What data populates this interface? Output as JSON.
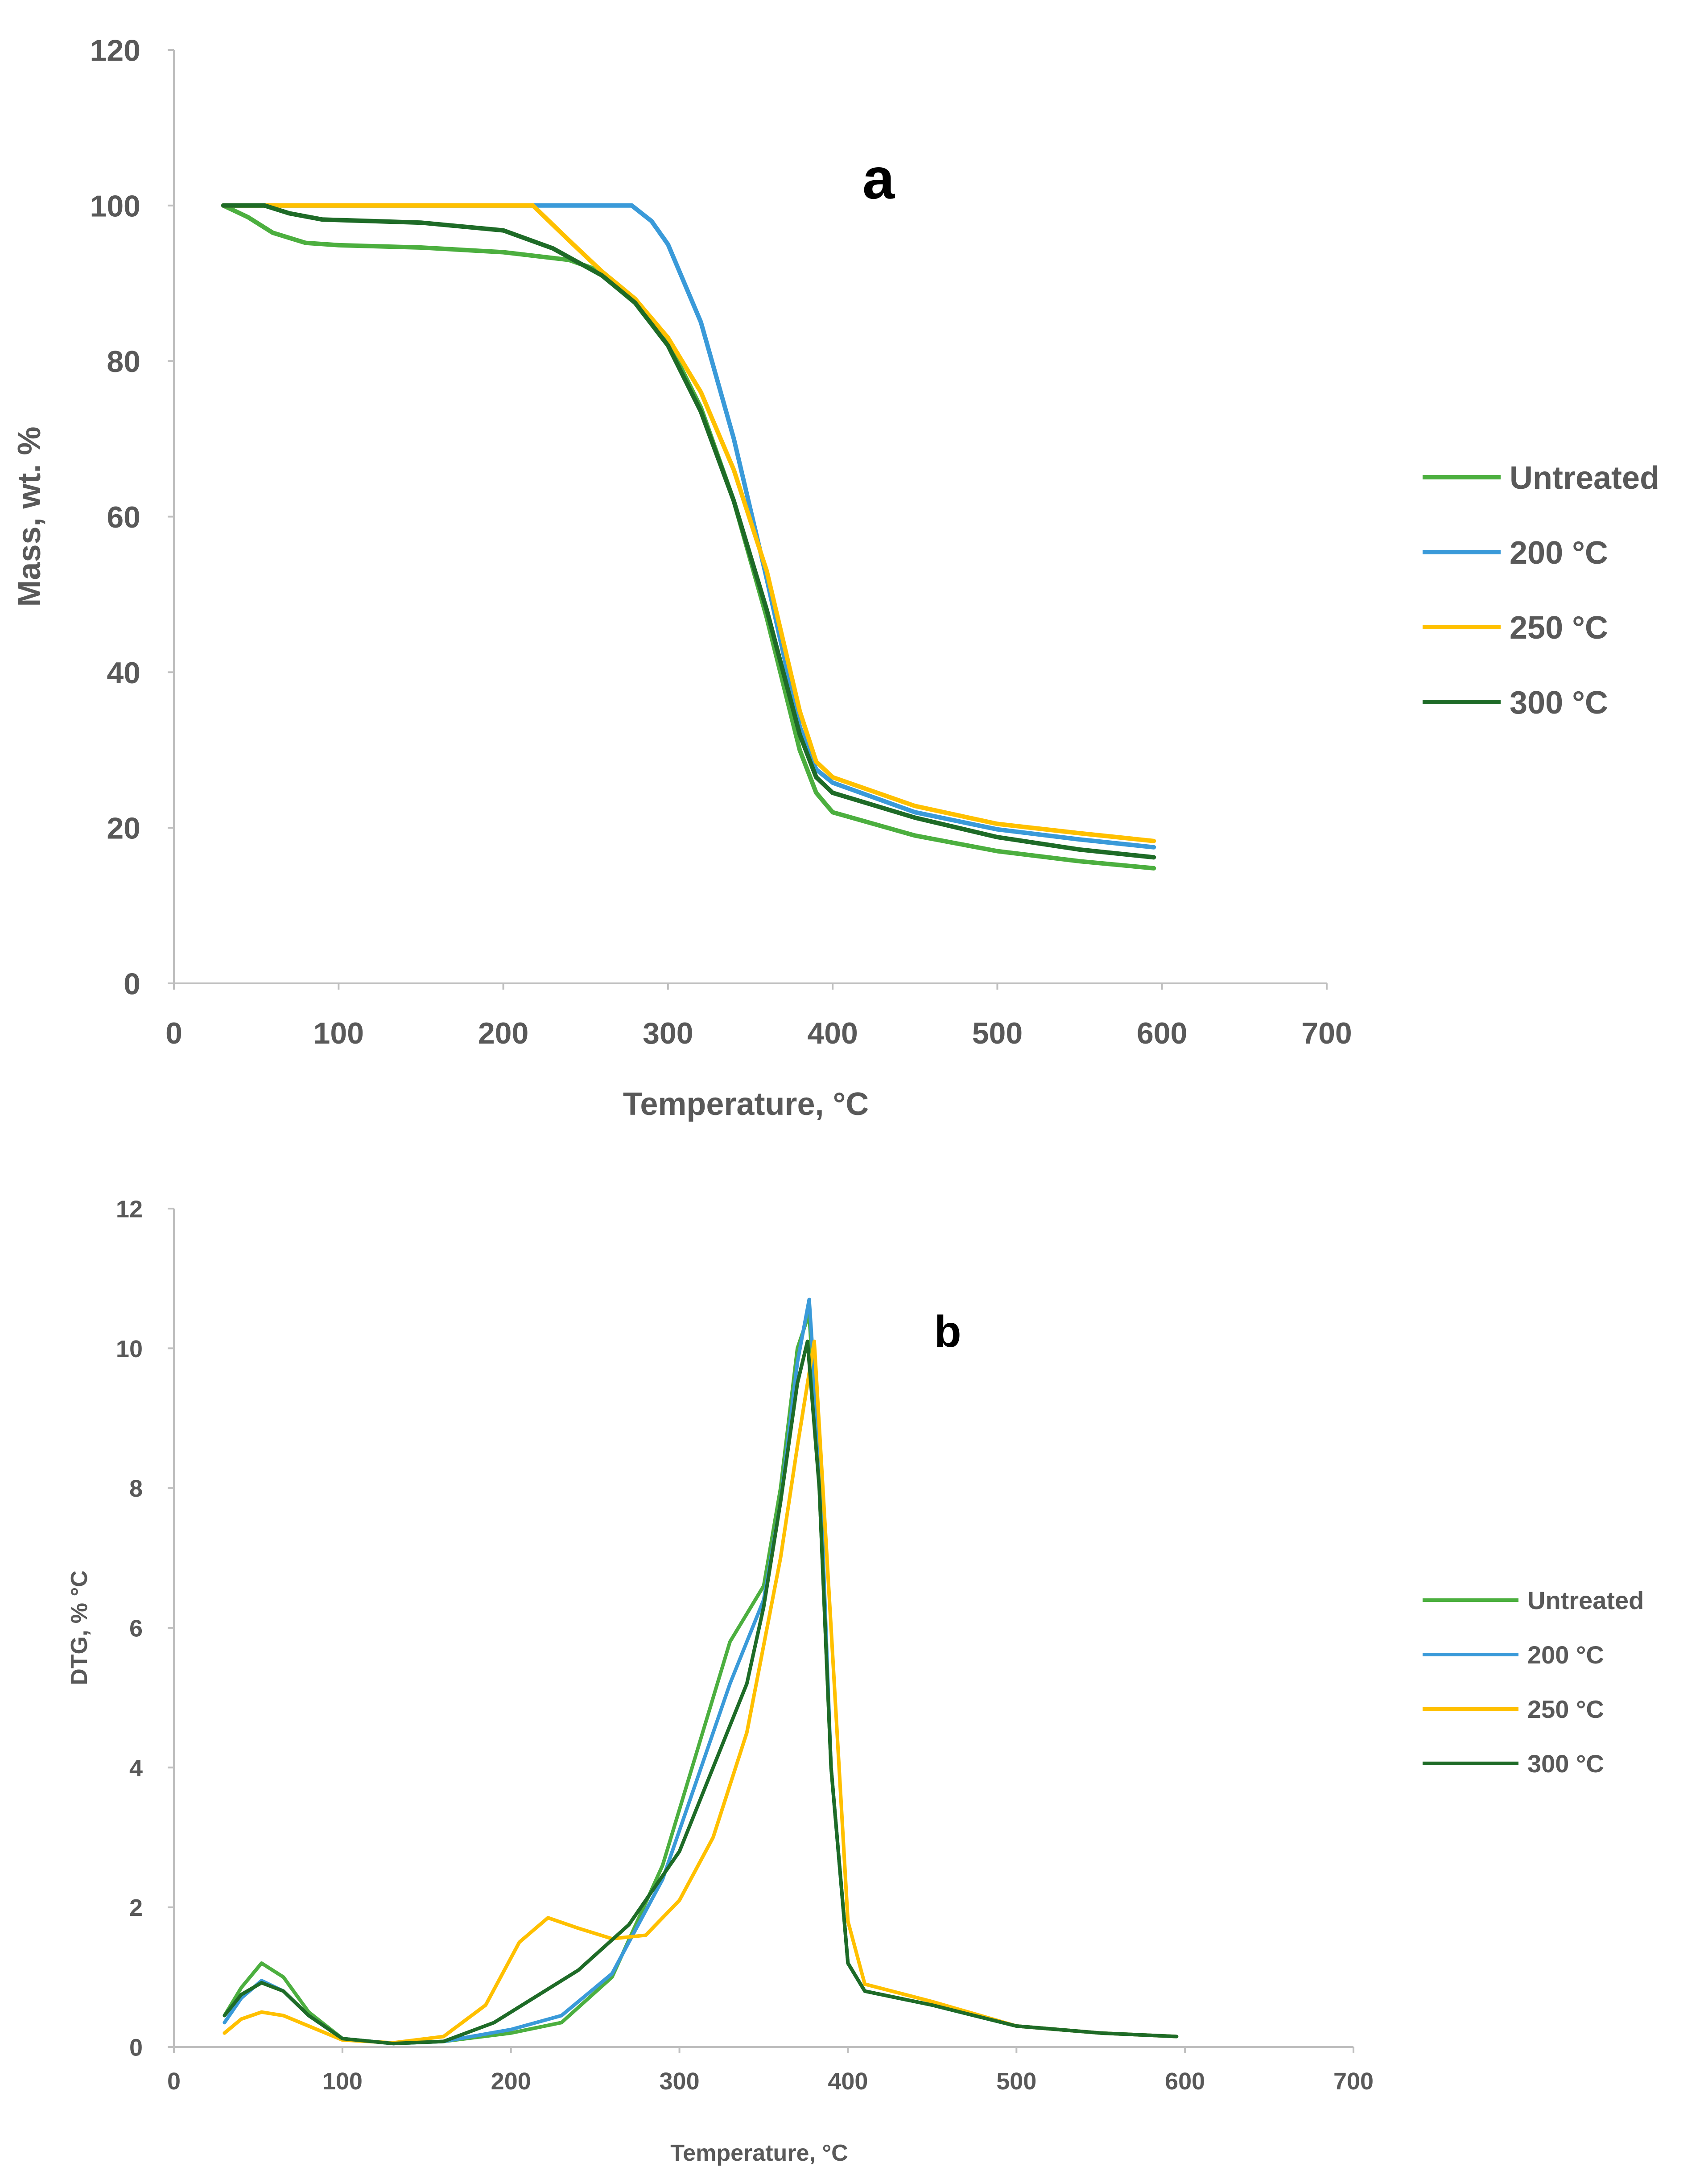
{
  "colors": {
    "untreated": "#4caf3f",
    "t200": "#3a9ad9",
    "t250": "#ffc000",
    "t300": "#1e6b27"
  },
  "chart_data": [
    {
      "type": "line",
      "panel_label": "a",
      "xlabel": "Temperature, °C",
      "ylabel": "Mass, wt. %",
      "xlim": [
        0,
        700
      ],
      "ylim": [
        0,
        120
      ],
      "xticks": [
        "0",
        "100",
        "200",
        "300",
        "400",
        "500",
        "600",
        "700"
      ],
      "yticks": [
        "0",
        "20",
        "40",
        "60",
        "80",
        "100",
        "120"
      ],
      "legend_position": "right",
      "series": [
        {
          "name": "Untreated",
          "color_key": "untreated",
          "x": [
            30,
            45,
            60,
            80,
            100,
            150,
            200,
            240,
            260,
            280,
            300,
            320,
            340,
            360,
            380,
            390,
            400,
            450,
            500,
            550,
            595
          ],
          "y": [
            100,
            98.5,
            96.5,
            95.2,
            94.9,
            94.6,
            94.0,
            93.0,
            91.5,
            88.0,
            82.5,
            74.0,
            62.0,
            47.0,
            30.0,
            24.5,
            22.0,
            19.0,
            17.0,
            15.7,
            14.8
          ]
        },
        {
          "name": "200 °C",
          "color_key": "t200",
          "x": [
            30,
            100,
            200,
            278,
            290,
            300,
            320,
            340,
            360,
            380,
            390,
            400,
            450,
            500,
            550,
            595
          ],
          "y": [
            100,
            100,
            100,
            100,
            98.0,
            95.0,
            85.0,
            70.0,
            52.0,
            33.0,
            27.5,
            25.8,
            22.0,
            19.8,
            18.5,
            17.5
          ]
        },
        {
          "name": "250 °C",
          "color_key": "t250",
          "x": [
            30,
            100,
            218,
            240,
            260,
            280,
            300,
            320,
            340,
            360,
            380,
            390,
            400,
            450,
            500,
            550,
            595
          ],
          "y": [
            100,
            100,
            100,
            95.5,
            91.5,
            88.0,
            83.0,
            76.0,
            66.0,
            53.0,
            35.0,
            28.5,
            26.5,
            22.8,
            20.5,
            19.3,
            18.3
          ]
        },
        {
          "name": "300 °C",
          "color_key": "t300",
          "x": [
            30,
            55,
            70,
            90,
            150,
            200,
            230,
            260,
            280,
            300,
            320,
            340,
            360,
            380,
            390,
            400,
            450,
            500,
            550,
            595
          ],
          "y": [
            100,
            100,
            99.0,
            98.2,
            97.8,
            96.8,
            94.5,
            91.0,
            87.5,
            82.0,
            73.5,
            62.0,
            48.0,
            32.0,
            26.5,
            24.5,
            21.3,
            18.8,
            17.2,
            16.2
          ]
        }
      ]
    },
    {
      "type": "line",
      "panel_label": "b",
      "xlabel": "Temperature, °C",
      "ylabel": "DTG, % °C",
      "xlim": [
        0,
        700
      ],
      "ylim": [
        0,
        12
      ],
      "xticks": [
        "0",
        "100",
        "200",
        "300",
        "400",
        "500",
        "600",
        "700"
      ],
      "yticks": [
        "0",
        "2",
        "4",
        "6",
        "8",
        "10",
        "12"
      ],
      "legend_position": "right",
      "series": [
        {
          "name": "Untreated",
          "color_key": "untreated",
          "x": [
            30,
            40,
            52,
            65,
            80,
            100,
            130,
            160,
            200,
            230,
            260,
            290,
            310,
            330,
            350,
            360,
            370,
            377,
            383,
            390,
            400,
            410,
            450,
            500,
            550,
            595
          ],
          "y": [
            0.45,
            0.85,
            1.2,
            1.0,
            0.5,
            0.12,
            0.05,
            0.08,
            0.2,
            0.35,
            1.0,
            2.6,
            4.2,
            5.8,
            6.6,
            8.0,
            10.0,
            10.5,
            8.0,
            4.0,
            1.2,
            0.8,
            0.6,
            0.3,
            0.2,
            0.15
          ]
        },
        {
          "name": "200 °C",
          "color_key": "t200",
          "x": [
            30,
            40,
            52,
            65,
            80,
            100,
            130,
            160,
            200,
            230,
            260,
            290,
            310,
            330,
            350,
            360,
            370,
            377,
            383,
            390,
            400,
            410,
            450,
            500,
            550,
            595
          ],
          "y": [
            0.35,
            0.7,
            0.95,
            0.8,
            0.45,
            0.12,
            0.05,
            0.08,
            0.25,
            0.45,
            1.05,
            2.4,
            3.8,
            5.2,
            6.4,
            7.8,
            9.8,
            10.7,
            8.5,
            4.0,
            1.2,
            0.8,
            0.6,
            0.3,
            0.2,
            0.15
          ]
        },
        {
          "name": "250 °C",
          "color_key": "t250",
          "x": [
            30,
            40,
            52,
            65,
            80,
            100,
            130,
            160,
            185,
            205,
            222,
            240,
            260,
            280,
            300,
            320,
            340,
            360,
            370,
            380,
            390,
            400,
            410,
            450,
            500,
            550,
            595
          ],
          "y": [
            0.2,
            0.4,
            0.5,
            0.45,
            0.3,
            0.1,
            0.06,
            0.15,
            0.6,
            1.5,
            1.85,
            1.7,
            1.55,
            1.6,
            2.1,
            3.0,
            4.5,
            7.0,
            8.6,
            10.1,
            6.0,
            1.8,
            0.9,
            0.65,
            0.3,
            0.2,
            0.15
          ]
        },
        {
          "name": "300 °C",
          "color_key": "t300",
          "x": [
            30,
            40,
            52,
            65,
            80,
            100,
            130,
            160,
            190,
            210,
            240,
            270,
            300,
            320,
            340,
            350,
            360,
            370,
            376,
            383,
            390,
            400,
            410,
            450,
            500,
            550,
            595
          ],
          "y": [
            0.45,
            0.75,
            0.92,
            0.8,
            0.45,
            0.12,
            0.05,
            0.08,
            0.35,
            0.65,
            1.1,
            1.75,
            2.8,
            4.0,
            5.2,
            6.3,
            7.8,
            9.5,
            10.1,
            8.0,
            4.0,
            1.2,
            0.8,
            0.6,
            0.3,
            0.2,
            0.15
          ]
        }
      ]
    }
  ]
}
